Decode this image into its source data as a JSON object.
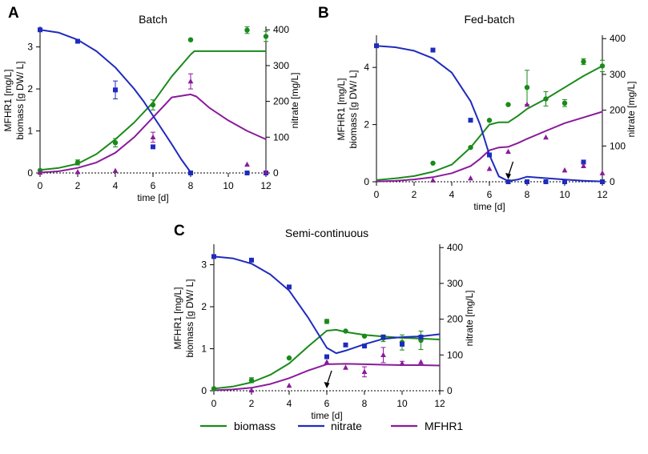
{
  "colors": {
    "biomass": "#1a8a1a",
    "nitrate": "#1f2bbd",
    "mfhr1": "#8a1a9b",
    "axis": "#000000"
  },
  "legend": [
    {
      "key": "biomass",
      "label": "biomass"
    },
    {
      "key": "nitrate",
      "label": "nitrate"
    },
    {
      "key": "mfhr1",
      "label": "MFHR1"
    }
  ],
  "chart_data": [
    {
      "panel": "A",
      "type": "line",
      "title": "Batch",
      "xlabel": "time [d]",
      "ylabel_left": [
        "MFHR1 [mg/L]",
        "biomass [g DW/ L]"
      ],
      "ylabel_right": "nitrate [mg/L]",
      "xlim": [
        0,
        12
      ],
      "xticks": [
        0,
        2,
        4,
        6,
        8,
        10,
        12
      ],
      "ylim_left": [
        0,
        3.45
      ],
      "yticks_left": [
        0,
        1,
        2,
        3
      ],
      "ylim_right": [
        0,
        405
      ],
      "yticks_right": [
        0,
        100,
        200,
        300,
        400
      ],
      "model": {
        "biomass": {
          "x": [
            0,
            1,
            2,
            3,
            4,
            5,
            6,
            7,
            8,
            8.2,
            9,
            10,
            11,
            12
          ],
          "y": [
            0.07,
            0.12,
            0.22,
            0.45,
            0.8,
            1.2,
            1.68,
            2.3,
            2.82,
            2.9,
            2.9,
            2.9,
            2.9,
            2.9
          ]
        },
        "nitrate": {
          "x": [
            0,
            1,
            2,
            3,
            4,
            5,
            5.5,
            6,
            7,
            7.5,
            8
          ],
          "y": [
            400,
            392,
            372,
            340,
            295,
            235,
            200,
            160,
            80,
            38,
            2
          ]
        },
        "mfhr1": {
          "x": [
            0,
            1,
            2,
            3,
            4,
            5,
            6,
            7,
            8,
            8.3,
            9,
            10,
            11,
            12
          ],
          "y": [
            0.01,
            0.04,
            0.12,
            0.25,
            0.48,
            0.85,
            1.32,
            1.8,
            1.87,
            1.82,
            1.55,
            1.25,
            1.0,
            0.8
          ]
        }
      },
      "measured": {
        "biomass": {
          "x": [
            0,
            2,
            4,
            6,
            8,
            11,
            12
          ],
          "y": [
            0.06,
            0.25,
            0.72,
            1.62,
            3.17,
            3.4,
            3.25
          ],
          "err": [
            0,
            0.06,
            0.1,
            0.12,
            0,
            0.08,
            0.12
          ]
        },
        "nitrate": {
          "x": [
            0,
            2,
            4,
            6,
            8,
            11,
            12
          ],
          "y": [
            400,
            368,
            232,
            73,
            0,
            0,
            0
          ],
          "err": [
            0,
            0,
            25,
            0,
            0,
            0,
            0
          ]
        },
        "mfhr1": {
          "x": [
            0,
            2,
            4,
            6,
            8,
            11,
            12
          ],
          "y": [
            0.01,
            0.02,
            0.05,
            0.85,
            2.18,
            0.2,
            0.02
          ],
          "err": [
            0,
            0,
            0,
            0.12,
            0.18,
            0,
            0
          ]
        }
      }
    },
    {
      "panel": "B",
      "type": "line",
      "title": "Fed-batch",
      "xlabel": "time [d]",
      "ylabel_left": [
        "MFHR1 [mg/L]",
        "biomass [g DW/ L]"
      ],
      "ylabel_right": "nitrate [mg/L]",
      "xlim": [
        0,
        12
      ],
      "xticks": [
        0,
        2,
        4,
        6,
        8,
        10,
        12
      ],
      "ylim_left": [
        0,
        5.07
      ],
      "yticks_left": [
        0,
        2,
        4
      ],
      "ylim_right": [
        0,
        405
      ],
      "yticks_right": [
        0,
        100,
        200,
        300,
        400
      ],
      "arrows": [
        {
          "x": 7,
          "label": ""
        }
      ],
      "model": {
        "biomass": {
          "x": [
            0,
            1,
            2,
            3,
            4,
            5,
            5.5,
            6,
            6.5,
            7,
            7.5,
            8,
            9,
            10,
            11,
            12
          ],
          "y": [
            0.06,
            0.12,
            0.2,
            0.35,
            0.6,
            1.2,
            1.6,
            2.0,
            2.08,
            2.08,
            2.3,
            2.55,
            2.9,
            3.3,
            3.7,
            4.05
          ]
        },
        "nitrate": {
          "x": [
            0,
            1,
            2,
            3,
            4,
            5,
            5.5,
            6,
            6.5,
            7,
            7.5,
            8,
            9,
            10,
            11,
            12
          ],
          "y": [
            380,
            376,
            366,
            345,
            305,
            225,
            160,
            75,
            15,
            2,
            6,
            14,
            10,
            6,
            3,
            1
          ]
        },
        "mfhr1": {
          "x": [
            0,
            1,
            2,
            3,
            4,
            5,
            5.5,
            6,
            6.5,
            7,
            7.5,
            8,
            9,
            10,
            11,
            12
          ],
          "y": [
            0.01,
            0.03,
            0.08,
            0.16,
            0.3,
            0.55,
            0.8,
            1.1,
            1.2,
            1.22,
            1.35,
            1.5,
            1.78,
            2.05,
            2.25,
            2.45
          ]
        }
      },
      "measured": {
        "biomass": {
          "x": [
            3,
            5,
            6,
            7,
            8,
            9,
            10,
            11,
            12
          ],
          "y": [
            0.65,
            1.2,
            2.15,
            2.7,
            3.3,
            2.9,
            2.75,
            4.2,
            4.05
          ],
          "err": [
            0,
            0,
            0,
            0,
            0.6,
            0.25,
            0.12,
            0.1,
            0.2
          ]
        },
        "nitrate": {
          "x": [
            0,
            3,
            5,
            6,
            7,
            8,
            9,
            10,
            11,
            12
          ],
          "y": [
            380,
            368,
            172,
            75,
            0,
            0,
            0,
            0,
            55,
            0
          ],
          "err": [
            0,
            0,
            0,
            0,
            0,
            0,
            0,
            0,
            0,
            0
          ]
        },
        "mfhr1": {
          "x": [
            3,
            5,
            6,
            7,
            8,
            9,
            10,
            11,
            12
          ],
          "y": [
            0.05,
            0.12,
            0.45,
            1.05,
            2.7,
            1.55,
            0.4,
            0.55,
            0.3
          ],
          "err": [
            0,
            0,
            0,
            0,
            0,
            0,
            0,
            0,
            0
          ]
        }
      }
    },
    {
      "panel": "C",
      "type": "line",
      "title": "Semi-continuous",
      "xlabel": "time [d]",
      "ylabel_left": [
        "MFHR1 [mg/L]",
        "biomass [g DW/ L]"
      ],
      "ylabel_right": "nitrate [mg/L]",
      "xlim": [
        0,
        12
      ],
      "xticks": [
        0,
        2,
        4,
        6,
        8,
        10,
        12
      ],
      "ylim_left": [
        0,
        3.45
      ],
      "yticks_left": [
        0,
        1,
        2,
        3
      ],
      "ylim_right": [
        0,
        405
      ],
      "yticks_right": [
        0,
        100,
        200,
        300,
        400
      ],
      "arrows": [
        {
          "x": 6,
          "label": ""
        }
      ],
      "model": {
        "biomass": {
          "x": [
            0,
            1,
            2,
            3,
            4,
            5,
            6,
            6.5,
            7,
            8,
            9,
            10,
            11,
            12
          ],
          "y": [
            0.05,
            0.1,
            0.2,
            0.38,
            0.65,
            1.05,
            1.43,
            1.45,
            1.4,
            1.33,
            1.29,
            1.26,
            1.24,
            1.22
          ]
        },
        "nitrate": {
          "x": [
            0,
            1,
            2,
            3,
            4,
            5,
            6,
            6.5,
            7,
            8,
            9,
            10,
            11,
            12
          ],
          "y": [
            375,
            370,
            355,
            325,
            280,
            205,
            120,
            105,
            112,
            130,
            145,
            150,
            152,
            158
          ]
        },
        "mfhr1": {
          "x": [
            0,
            1,
            2,
            3,
            4,
            5,
            6,
            7,
            8,
            9,
            10,
            11,
            12
          ],
          "y": [
            0.01,
            0.03,
            0.07,
            0.16,
            0.3,
            0.48,
            0.63,
            0.64,
            0.63,
            0.62,
            0.61,
            0.61,
            0.6
          ]
        }
      },
      "measured": {
        "biomass": {
          "x": [
            0,
            2,
            4,
            6,
            7,
            8,
            9,
            10,
            11
          ],
          "y": [
            0.05,
            0.25,
            0.78,
            1.65,
            1.42,
            1.3,
            1.25,
            1.15,
            1.2
          ],
          "err": [
            0,
            0.06,
            0,
            0.05,
            0,
            0,
            0.08,
            0.18,
            0.22
          ]
        },
        "nitrate": {
          "x": [
            0,
            2,
            4,
            6,
            7,
            8,
            9,
            10,
            11
          ],
          "y": [
            375,
            365,
            290,
            95,
            128,
            125,
            150,
            130,
            150
          ],
          "err": [
            0,
            0,
            0,
            0,
            0,
            0,
            0,
            0,
            0
          ]
        },
        "mfhr1": {
          "x": [
            2,
            4,
            6,
            7,
            8,
            9,
            10,
            11
          ],
          "y": [
            0.01,
            0.12,
            0.68,
            0.55,
            0.45,
            0.85,
            0.65,
            0.68
          ],
          "err": [
            0,
            0,
            0,
            0,
            0.12,
            0.18,
            0.05,
            0
          ]
        }
      }
    }
  ]
}
